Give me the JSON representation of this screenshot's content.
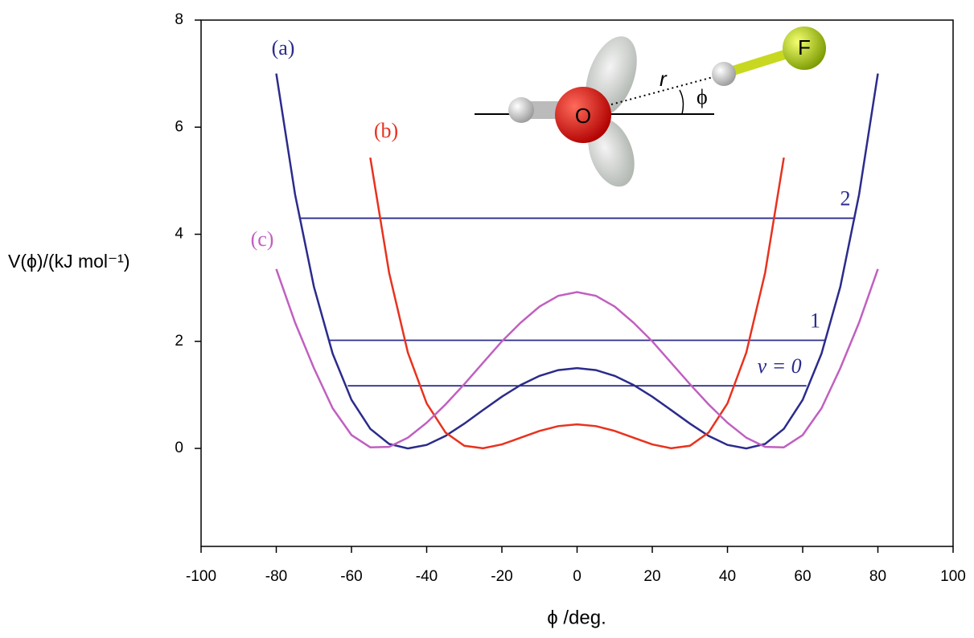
{
  "chart_data": {
    "type": "line",
    "xlabel": "ϕ /deg.",
    "ylabel": "V(ϕ)/(kJ mol⁻¹)",
    "xlim": [
      -100,
      100
    ],
    "xticks": [
      -100,
      -80,
      -60,
      -40,
      -20,
      0,
      20,
      40,
      60,
      80,
      100
    ],
    "ylim": [
      -1.83,
      8
    ],
    "yticks": [
      0,
      2,
      4,
      6,
      8
    ],
    "series": [
      {
        "name": "(a)",
        "color": "#2b2b8c",
        "x": [
          -80,
          -75,
          -70,
          -65,
          -60,
          -55,
          -50,
          -45,
          -40,
          -35,
          -30,
          -25,
          -20,
          -15,
          -10,
          -5,
          0,
          5,
          10,
          15,
          20,
          25,
          30,
          35,
          40,
          45,
          50,
          55,
          60,
          65,
          70,
          75,
          80
        ],
        "values": [
          7.0,
          4.74,
          3.02,
          1.77,
          0.907,
          0.366,
          0.083,
          0,
          0.066,
          0.234,
          0.463,
          0.717,
          0.966,
          1.185,
          1.355,
          1.463,
          1.5,
          1.463,
          1.355,
          1.185,
          0.966,
          0.717,
          0.463,
          0.234,
          0.066,
          0,
          0.083,
          0.366,
          0.907,
          1.77,
          3.02,
          4.74,
          7.0
        ]
      },
      {
        "name": "(b)",
        "color": "#e8321e",
        "x": [
          -55,
          -50,
          -45,
          -40,
          -35,
          -30,
          -25,
          -20,
          -15,
          -10,
          -5,
          0,
          5,
          10,
          15,
          20,
          25,
          30,
          35,
          40,
          45,
          50,
          55
        ],
        "values": [
          5.43,
          3.28,
          1.79,
          0.841,
          0.297,
          0.049,
          0.003,
          0.075,
          0.2,
          0.327,
          0.417,
          0.45,
          0.417,
          0.327,
          0.2,
          0.075,
          0.003,
          0.049,
          0.297,
          0.841,
          1.79,
          3.28,
          5.43
        ]
      },
      {
        "name": "(c)",
        "color": "#c060c0",
        "x": [
          -80,
          -75,
          -70,
          -65,
          -60,
          -55,
          -50,
          -45,
          -40,
          -35,
          -30,
          -25,
          -20,
          -15,
          -10,
          -5,
          0,
          5,
          10,
          15,
          20,
          25,
          30,
          35,
          40,
          45,
          50,
          55,
          60,
          65,
          70,
          75,
          80
        ],
        "values": [
          3.35,
          2.35,
          1.5,
          0.75,
          0.25,
          0.02,
          0.03,
          0.2,
          0.48,
          0.82,
          1.2,
          1.6,
          2.0,
          2.35,
          2.65,
          2.85,
          2.92,
          2.85,
          2.65,
          2.35,
          2.0,
          1.6,
          1.2,
          0.82,
          0.48,
          0.2,
          0.03,
          0.02,
          0.25,
          0.75,
          1.5,
          2.35,
          3.35
        ]
      }
    ],
    "levels": [
      {
        "label": "v = 0",
        "value": 1.17,
        "x": [
          -61,
          61
        ],
        "color": "#2b2b8c"
      },
      {
        "label": "1",
        "value": 2.02,
        "x": [
          -66,
          66
        ],
        "color": "#2b2b8c"
      },
      {
        "label": "2",
        "value": 4.3,
        "x": [
          -74,
          74
        ],
        "color": "#2b2b8c"
      }
    ],
    "inset": {
      "oxygen": "O",
      "fluorine": "F",
      "distance": "r",
      "angle": "ϕ"
    }
  }
}
